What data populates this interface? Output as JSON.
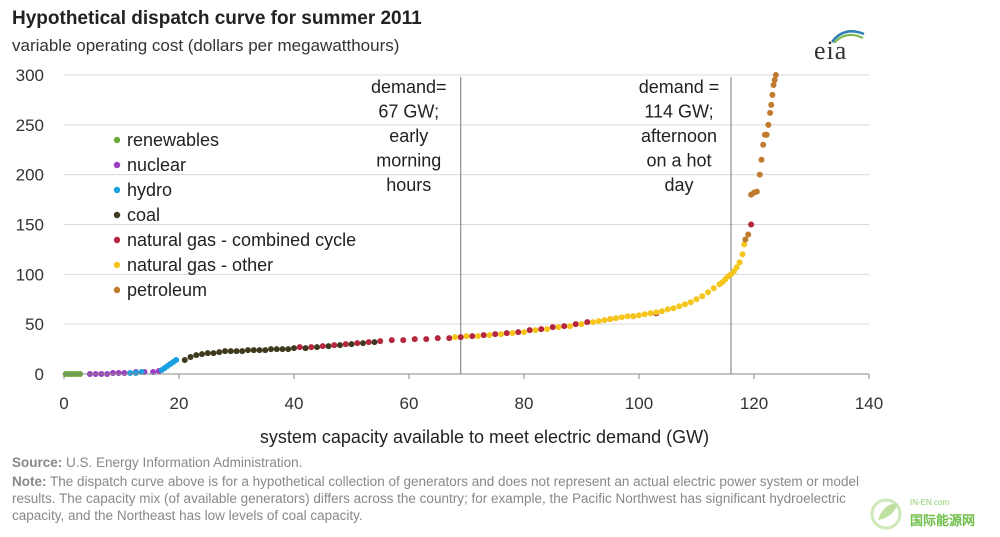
{
  "header": {
    "title": "Hypothetical dispatch curve for summer 2011",
    "subtitle": "variable operating cost (dollars per megawatthours)"
  },
  "logo": {
    "text": "eia",
    "colors": [
      "#2f7fb6",
      "#7ab648"
    ]
  },
  "footer": {
    "source_label": "Source:",
    "source_text": "U.S. Energy Information Administration.",
    "note_label": "Note:",
    "note_text": "The dispatch curve above is for a hypothetical collection of generators and does not represent an actual electric power system or model results. The capacity mix (of available generators) differs across the country; for example, the Pacific Northwest has significant hydroelectric capacity, and the Northeast has low levels of coal capacity."
  },
  "watermark": {
    "small": "IN-EN.com",
    "text": "国际能源网"
  },
  "chart_data": {
    "type": "scatter",
    "xlabel": "system capacity available to meet electric demand (GW)",
    "ylabel": "",
    "xlim": [
      0,
      140
    ],
    "ylim": [
      0,
      300
    ],
    "xticks": [
      0,
      20,
      40,
      60,
      80,
      100,
      120,
      140
    ],
    "yticks": [
      0,
      50,
      100,
      150,
      200,
      250,
      300
    ],
    "grid": "horizontal",
    "legend_position": "left",
    "series": [
      {
        "name": "renewables",
        "color": "#6aaa3a",
        "x": [
          0.3,
          0.8,
          1.3,
          1.8,
          2.3,
          2.8
        ],
        "y": [
          0,
          0,
          0,
          0,
          0,
          0
        ]
      },
      {
        "name": "nuclear",
        "color": "#9b3fc0",
        "x": [
          4.5,
          5.5,
          6.5,
          7.5,
          8.5,
          9.5,
          10.5,
          12.5,
          14,
          15.5,
          16.5
        ],
        "y": [
          0,
          0,
          0,
          0,
          1,
          1,
          1,
          2,
          2,
          2,
          3
        ]
      },
      {
        "name": "hydro",
        "color": "#1aa0e0",
        "x": [
          11.5,
          12.5,
          13.5,
          17,
          17.5,
          18,
          18.5,
          19,
          19.5
        ],
        "y": [
          1,
          1,
          2,
          4,
          6,
          8,
          10,
          12,
          14
        ]
      },
      {
        "name": "coal",
        "color": "#3d3a1e",
        "x": [
          21,
          22,
          23,
          24,
          25,
          26,
          27,
          28,
          29,
          30,
          31,
          32,
          33,
          34,
          35,
          36,
          37,
          38,
          39,
          40,
          42,
          44,
          46,
          48,
          50,
          52,
          54
        ],
        "y": [
          14,
          17,
          19,
          20,
          21,
          21,
          22,
          23,
          23,
          23,
          23,
          24,
          24,
          24,
          24,
          25,
          25,
          25,
          25,
          26,
          26,
          27,
          28,
          29,
          30,
          31,
          32
        ]
      },
      {
        "name": "natural gas - combined cycle",
        "color": "#b5263f",
        "x": [
          41,
          43,
          45,
          47,
          49,
          51,
          53,
          55,
          57,
          59,
          61,
          63,
          65,
          67,
          69,
          71,
          73,
          75,
          77,
          79,
          81,
          83,
          85,
          87,
          89,
          91,
          95,
          99,
          103,
          119.5
        ],
        "y": [
          27,
          27,
          28,
          29,
          30,
          31,
          32,
          33,
          34,
          34,
          35,
          35,
          36,
          36,
          37,
          38,
          39,
          40,
          41,
          42,
          44,
          45,
          47,
          48,
          50,
          52,
          55,
          58,
          61,
          150
        ]
      },
      {
        "name": "natural gas - other",
        "color": "#f6c51b",
        "x": [
          68,
          70,
          72,
          74,
          76,
          78,
          80,
          82,
          84,
          86,
          88,
          90,
          92,
          93,
          94,
          95,
          96,
          97,
          98,
          99,
          100,
          101,
          102,
          103,
          104,
          105,
          106,
          107,
          108,
          109,
          110,
          111,
          112,
          113,
          114,
          114.5,
          115,
          115.5,
          116,
          116.5,
          117,
          117.5,
          118,
          118.3
        ],
        "y": [
          37,
          38,
          38,
          39,
          40,
          41,
          42,
          44,
          45,
          47,
          48,
          50,
          52,
          53,
          54,
          55,
          56,
          57,
          58,
          58,
          59,
          60,
          61,
          62,
          63,
          65,
          66,
          68,
          70,
          72,
          75,
          78,
          82,
          86,
          90,
          92,
          95,
          98,
          100,
          103,
          107,
          112,
          120,
          130
        ]
      },
      {
        "name": "petroleum",
        "color": "#c07a2e",
        "x": [
          118.5,
          119,
          119.5,
          120,
          120.5,
          121,
          121.3,
          121.6,
          121.9,
          122.2,
          122.5,
          122.8,
          123,
          123.2,
          123.4,
          123.6,
          123.8
        ],
        "y": [
          135,
          140,
          180,
          182,
          183,
          200,
          215,
          230,
          240,
          240,
          250,
          262,
          270,
          280,
          290,
          295,
          300
        ]
      }
    ],
    "annotations": [
      {
        "x": 69,
        "lines": [
          "demand=",
          "67 GW;",
          "early",
          "morning",
          "hours"
        ]
      },
      {
        "x": 116,
        "lines": [
          "demand =",
          "114 GW;",
          "afternoon",
          "on a hot",
          "day"
        ]
      }
    ]
  }
}
